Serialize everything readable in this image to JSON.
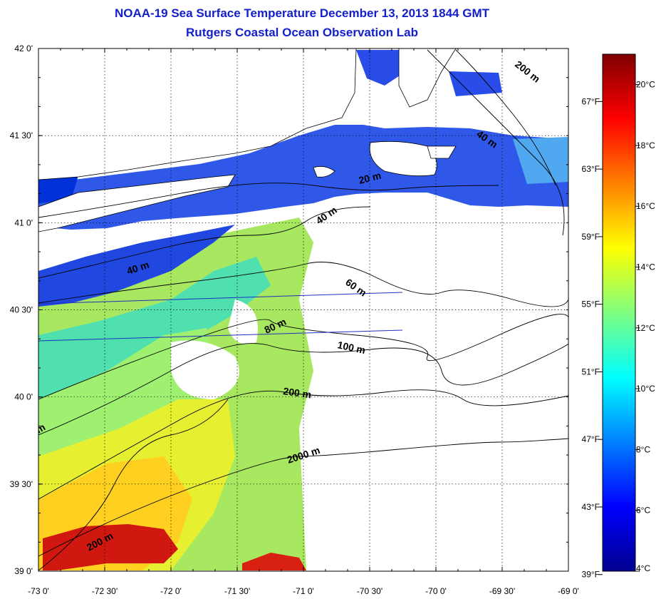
{
  "title": {
    "line1": "NOAA-19 Sea Surface Temperature December 13, 2013 1844 GMT",
    "line2": "Rutgers Coastal Ocean Observation Lab"
  },
  "map": {
    "lon_range": [
      -73,
      -69
    ],
    "lat_range": [
      39,
      42
    ],
    "lon_ticks": [
      -73,
      -72.5,
      -72,
      -71.5,
      -71,
      -70.5,
      -70,
      -69.5,
      -69
    ],
    "lat_ticks": [
      39,
      39.5,
      40,
      40.5,
      41,
      41.5,
      42
    ],
    "lon_tick_labels": [
      "-73 0'",
      "-72 30'",
      "-72 0'",
      "-71 30'",
      "-71 0'",
      "-70 30'",
      "-70 0'",
      "-69 30'",
      "-69 0'"
    ],
    "lat_tick_labels": [
      "39 0'",
      "39 30'",
      "40 0'",
      "40 30'",
      "41 0'",
      "41 30'",
      "42 0'"
    ],
    "grid": "dotted"
  },
  "fahrenheit_ticks": [
    "39°F",
    "43°F",
    "47°F",
    "51°F",
    "55°F",
    "59°F",
    "63°F",
    "67°F"
  ],
  "isobath_labels": [
    {
      "text": "200 m",
      "id": "isobath-200m-ne"
    },
    {
      "text": "40 m",
      "id": "isobath-40m-ne"
    },
    {
      "text": "20 m",
      "id": "isobath-20m"
    },
    {
      "text": "40 m",
      "id": "isobath-40m-mid"
    },
    {
      "text": "40 m",
      "id": "isobath-40m-west"
    },
    {
      "text": "60 m",
      "id": "isobath-60m"
    },
    {
      "text": "80 m",
      "id": "isobath-80m"
    },
    {
      "text": "100 m",
      "id": "isobath-100m"
    },
    {
      "text": "200 m",
      "id": "isobath-200m-mid"
    },
    {
      "text": "2000 m",
      "id": "isobath-2000m"
    },
    {
      "text": "200 m",
      "id": "isobath-200m-sw"
    },
    {
      "text": "m",
      "id": "isobath-m-edge"
    }
  ],
  "colorbar": {
    "range_c": [
      4,
      21
    ],
    "celsius_labels": [
      "4°C",
      "6°C",
      "8°C",
      "10°C",
      "12°C",
      "14°C",
      "16°C",
      "18°C",
      "20°C"
    ],
    "stops": [
      "#00008f",
      "#0000ff",
      "#0080ff",
      "#00ffff",
      "#80ff80",
      "#ffff00",
      "#ff8000",
      "#ff0000",
      "#800000"
    ]
  },
  "colors": {
    "title": "#1420c8",
    "land": "#ffffff",
    "cloud": "#ffffff",
    "border": "#000000",
    "track_line": "#2030c0"
  }
}
